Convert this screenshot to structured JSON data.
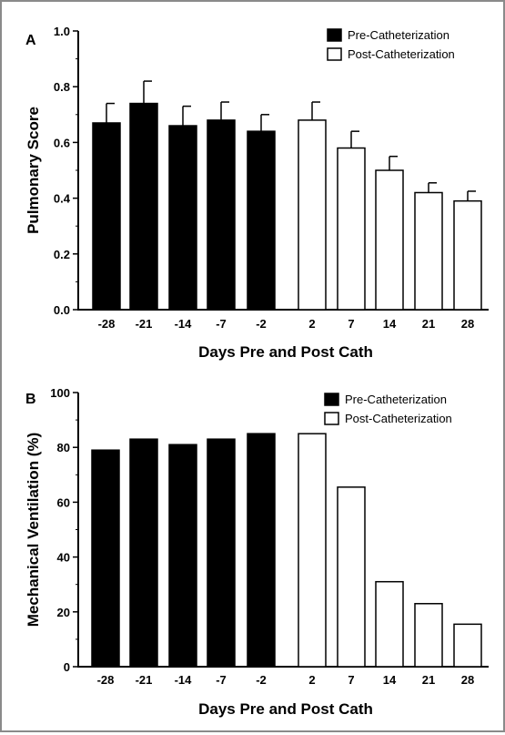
{
  "chart_data": [
    {
      "panel": "A",
      "type": "bar",
      "categories": [
        "-28",
        "-21",
        "-14",
        "-7",
        "-2",
        "2",
        "7",
        "14",
        "21",
        "28"
      ],
      "series": [
        {
          "name": "Pre-Catheterization",
          "color": "#000000",
          "x": [
            "-28",
            "-21",
            "-14",
            "-7",
            "-2"
          ],
          "values": [
            0.67,
            0.74,
            0.66,
            0.68,
            0.64
          ],
          "errors": [
            0.07,
            0.08,
            0.07,
            0.065,
            0.06
          ]
        },
        {
          "name": "Post-Catheterization",
          "color": "#ffffff",
          "x": [
            "2",
            "7",
            "14",
            "21",
            "28"
          ],
          "values": [
            0.68,
            0.58,
            0.5,
            0.42,
            0.39
          ],
          "errors": [
            0.065,
            0.06,
            0.05,
            0.035,
            0.035
          ]
        }
      ],
      "ylim": [
        0,
        1.0
      ],
      "yticks": [
        "0.0",
        "0.2",
        "0.4",
        "0.6",
        "0.8",
        "1.0"
      ],
      "xlabel": "Days Pre and Post Cath",
      "ylabel": "Pulmonary  Score",
      "legend_position": "top-right"
    },
    {
      "panel": "B",
      "type": "bar",
      "categories": [
        "-28",
        "-21",
        "-14",
        "-7",
        "-2",
        "2",
        "7",
        "14",
        "21",
        "28"
      ],
      "series": [
        {
          "name": "Pre-Catheterization",
          "color": "#000000",
          "x": [
            "-28",
            "-21",
            "-14",
            "-7",
            "-2"
          ],
          "values": [
            79,
            83,
            81,
            83,
            85
          ]
        },
        {
          "name": "Post-Catheterization",
          "color": "#ffffff",
          "x": [
            "2",
            "7",
            "14",
            "21",
            "28"
          ],
          "values": [
            85,
            65.5,
            31,
            23,
            15.5
          ]
        }
      ],
      "ylim": [
        0,
        100
      ],
      "yticks": [
        "0",
        "20",
        "40",
        "60",
        "80",
        "100"
      ],
      "xlabel": "Days Pre and Post Cath",
      "ylabel": "Mechanical Ventilation (%)",
      "legend_position": "top-right"
    }
  ]
}
